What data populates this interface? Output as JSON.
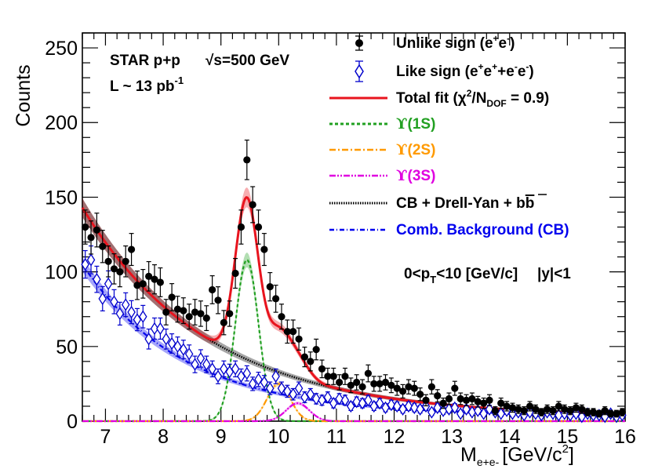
{
  "chart_data": {
    "type": "scatter",
    "title": "",
    "xlabel": "M",
    "xlabel_sub": "e+e-",
    "xlabel_unit": "[GeV/c",
    "xlabel_unit_sup": "2",
    "xlabel_close": "]",
    "ylabel": "Counts",
    "xlim": [
      6.6,
      16
    ],
    "ylim": [
      0,
      260
    ],
    "x_ticks": [
      7,
      8,
      9,
      10,
      11,
      12,
      13,
      14,
      15,
      16
    ],
    "y_ticks": [
      0,
      50,
      100,
      150,
      200,
      250
    ],
    "annotations": {
      "experiment": "STAR p+p",
      "sqrt_s_symbol": "√s",
      "energy": "=500 GeV",
      "lumi_prefix": "L ~ 13 pb",
      "lumi_sup": "-1",
      "kinematics_prefix": "0<p",
      "kinematics_sub": "T",
      "kinematics_rest": "<10 [GeV/c]",
      "rapidity": "|y|<1"
    },
    "legend": {
      "position": "top-right",
      "entries": [
        {
          "key": "unlike",
          "text": "Unlike sign (e",
          "sup1": "+",
          "mid": "e",
          "sup2": "-",
          "end": ")",
          "color": "#000000"
        },
        {
          "key": "like",
          "text": "Like sign (e",
          "sup1": "+",
          "mid": "e",
          "sup2": "+",
          "mid2": "+e",
          "sup3": "-",
          "mid3": "e",
          "sup4": "-",
          "end": ")",
          "color": "#0000cc"
        },
        {
          "key": "total",
          "text": "Total fit (χ",
          "sup1": "2",
          "mid": "/N",
          "sub1": "DOF",
          "end": " = 0.9)",
          "color": "#e8141e"
        },
        {
          "key": "u1s",
          "symbol": "ϒ",
          "text": "(1S)",
          "color": "#22a022"
        },
        {
          "key": "u2s",
          "symbol": "ϒ",
          "text": "(2S)",
          "color": "#ff9a00"
        },
        {
          "key": "u3s",
          "symbol": "ϒ",
          "text": "(3S)",
          "color": "#e000e0"
        },
        {
          "key": "cbdy",
          "text": "CB + Drell-Yan + b",
          "bbar": "b",
          "color": "#000000"
        },
        {
          "key": "comb",
          "text": "Comb. Background (CB)",
          "color": "#0000ee"
        }
      ]
    },
    "series": [
      {
        "name": "Unlike sign (e+e-)",
        "style": "filled-circle",
        "color": "#000000",
        "x": [
          6.65,
          6.75,
          6.85,
          6.95,
          7.05,
          7.15,
          7.25,
          7.35,
          7.45,
          7.55,
          7.65,
          7.75,
          7.85,
          7.95,
          8.05,
          8.15,
          8.25,
          8.35,
          8.45,
          8.55,
          8.65,
          8.75,
          8.85,
          8.95,
          9.05,
          9.15,
          9.25,
          9.35,
          9.45,
          9.55,
          9.65,
          9.75,
          9.85,
          9.95,
          10.05,
          10.15,
          10.25,
          10.35,
          10.45,
          10.55,
          10.65,
          10.75,
          10.85,
          10.95,
          11.05,
          11.15,
          11.25,
          11.35,
          11.45,
          11.55,
          11.65,
          11.75,
          11.85,
          11.95,
          12.05,
          12.15,
          12.25,
          12.35,
          12.45,
          12.55,
          12.65,
          12.75,
          12.85,
          12.95,
          13.05,
          13.15,
          13.25,
          13.35,
          13.45,
          13.55,
          13.65,
          13.75,
          13.85,
          13.95,
          14.05,
          14.15,
          14.25,
          14.35,
          14.45,
          14.55,
          14.65,
          14.75,
          14.85,
          14.95,
          15.05,
          15.15,
          15.25,
          15.35,
          15.45,
          15.55,
          15.65,
          15.75,
          15.85,
          15.95
        ],
        "y": [
          130,
          123,
          128,
          117,
          107,
          102,
          100,
          107,
          115,
          91,
          92,
          97,
          95,
          93,
          73,
          83,
          75,
          74,
          70,
          73,
          72,
          69,
          88,
          81,
          66,
          72,
          99,
          130,
          175,
          145,
          130,
          115,
          90,
          82,
          70,
          60,
          60,
          55,
          43,
          40,
          48,
          35,
          30,
          30,
          26,
          30,
          24,
          26,
          23,
          32,
          25,
          25,
          26,
          24,
          22,
          20,
          23,
          22,
          18,
          14,
          23,
          17,
          12,
          15,
          22,
          15,
          14,
          15,
          13,
          12,
          14,
          7,
          12,
          10,
          9,
          8,
          7,
          10,
          8,
          6,
          8,
          7,
          10,
          8,
          7,
          9,
          8,
          6,
          6,
          5,
          7,
          5,
          5,
          6
        ]
      },
      {
        "name": "Like sign (e+e+ + e-e-)",
        "style": "open-diamond",
        "color": "#0000cc",
        "x": [
          6.65,
          6.75,
          6.85,
          6.95,
          7.05,
          7.15,
          7.25,
          7.35,
          7.45,
          7.55,
          7.65,
          7.75,
          7.85,
          7.95,
          8.05,
          8.15,
          8.25,
          8.35,
          8.45,
          8.55,
          8.65,
          8.75,
          8.85,
          8.95,
          9.05,
          9.15,
          9.25,
          9.35,
          9.45,
          9.55,
          9.65,
          9.75,
          9.85,
          9.95,
          10.05,
          10.15,
          10.25,
          10.35,
          10.45,
          10.55,
          10.65,
          10.75,
          10.85,
          10.95,
          11.05,
          11.15,
          11.25,
          11.35,
          11.45,
          11.55,
          11.65,
          11.75,
          11.85,
          11.95,
          12.05,
          12.15,
          12.25,
          12.35,
          12.45,
          12.55,
          12.65,
          12.75,
          12.85,
          12.95,
          13.05,
          13.15,
          13.25,
          13.35,
          13.45,
          13.55,
          13.65,
          13.75,
          13.85,
          13.95,
          14.05,
          14.15,
          14.25,
          14.35,
          14.45,
          14.55,
          14.65,
          14.75,
          14.85,
          14.95,
          15.05,
          15.15,
          15.25,
          15.35,
          15.45,
          15.55,
          15.65,
          15.75,
          15.85,
          15.95
        ],
        "y": [
          105,
          108,
          95,
          82,
          92,
          80,
          72,
          78,
          73,
          68,
          70,
          55,
          62,
          62,
          55,
          52,
          50,
          48,
          45,
          38,
          42,
          38,
          35,
          30,
          35,
          33,
          35,
          30,
          32,
          25,
          28,
          26,
          22,
          30,
          22,
          20,
          18,
          22,
          16,
          18,
          15,
          14,
          16,
          12,
          15,
          14,
          10,
          13,
          12,
          14,
          10,
          12,
          9,
          11,
          10,
          8,
          10,
          9,
          8,
          10,
          6,
          9,
          7,
          8,
          9,
          5,
          8,
          6,
          7,
          5,
          8,
          6,
          5,
          7,
          5,
          6,
          4,
          6,
          5,
          4,
          6,
          5,
          4,
          5,
          4,
          5,
          3,
          5,
          4,
          4,
          3,
          5,
          3,
          4
        ]
      }
    ],
    "fit_curves": [
      {
        "name": "Total fit",
        "color": "#e8141e"
      },
      {
        "name": "Upsilon(1S)",
        "color": "#22a022",
        "peak": 9.45,
        "amplitude": 108,
        "sigma": 0.2
      },
      {
        "name": "Upsilon(2S)",
        "color": "#ff9a00",
        "peak": 10.0,
        "amplitude": 25,
        "sigma": 0.2
      },
      {
        "name": "Upsilon(3S)",
        "color": "#e000e0",
        "peak": 10.33,
        "amplitude": 12,
        "sigma": 0.2
      },
      {
        "name": "CB + Drell-Yan + bbar",
        "color": "#000000"
      },
      {
        "name": "Comb. Background (CB)",
        "color": "#0000ee"
      }
    ]
  }
}
